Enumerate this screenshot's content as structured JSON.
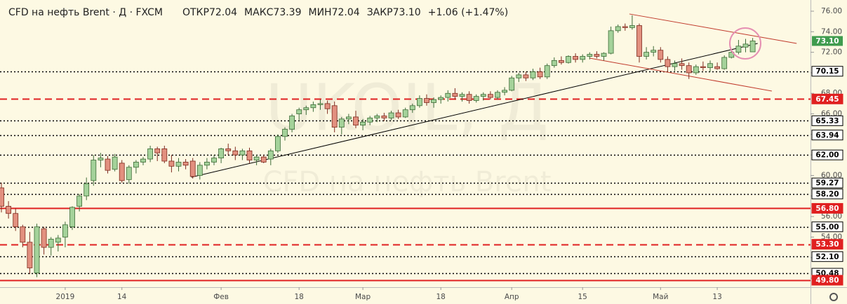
{
  "chart_data": {
    "type": "candlestick",
    "title": "CFD на нефть Brent · Д · FXCM",
    "ohlc_header": [
      {
        "label": "ОТКР",
        "value": "72.04"
      },
      {
        "label": "МАКС",
        "value": "73.39"
      },
      {
        "label": "МИН",
        "value": "72.04"
      },
      {
        "label": "ЗАКР",
        "value": "73.10"
      }
    ],
    "change": "+1.06 (+1.47%)",
    "watermark": "UKOIL, Д",
    "watermark_subtitle": "CFD на нефть Brent",
    "categories": [
      null,
      null,
      null,
      null,
      null,
      null,
      null,
      null,
      null,
      "2019",
      null,
      null,
      null,
      null,
      null,
      null,
      null,
      "14",
      null,
      null,
      null,
      null,
      null,
      null,
      null,
      null,
      null,
      null,
      null,
      null,
      null,
      "Фев",
      null,
      null,
      null,
      null,
      null,
      null,
      null,
      null,
      null,
      null,
      "18",
      null,
      null,
      null,
      null,
      null,
      null,
      null,
      null,
      "Мар",
      null,
      null,
      null,
      null,
      null,
      null,
      null,
      null,
      null,
      null,
      "18",
      null,
      null,
      null,
      null,
      null,
      null,
      null,
      null,
      null,
      "Апр",
      null,
      null,
      null,
      null,
      null,
      null,
      null,
      null,
      null,
      "15",
      null,
      null,
      null,
      null,
      null,
      null,
      null,
      null,
      null,
      null,
      "Май",
      null,
      null,
      null,
      null,
      null,
      null,
      null,
      "13",
      null,
      null,
      null,
      null,
      null
    ],
    "open": [
      58.8,
      57.0,
      56.3,
      55.0,
      53.5,
      50.5,
      54.8,
      53.0,
      53.5,
      54.0,
      55.0,
      57.0,
      58.0,
      59.5,
      61.5,
      61.6,
      60.6,
      61.2,
      59.6,
      60.8,
      61.3,
      61.6,
      62.6,
      62.6,
      61.4,
      60.9,
      61.3,
      61.4,
      60.0,
      61.0,
      61.3,
      61.7,
      62.6,
      62.4,
      62.0,
      62.4,
      61.5,
      61.8,
      61.6,
      62.4,
      63.8,
      64.5,
      66.0,
      66.4,
      66.6,
      66.9,
      67.0,
      66.8,
      64.7,
      65.5,
      65.7,
      64.9,
      65.2,
      65.6,
      65.8,
      65.6,
      66.1,
      65.7,
      66.4,
      66.8,
      67.5,
      67.1,
      67.4,
      67.6,
      68.0,
      67.7,
      67.9,
      67.3,
      67.7,
      67.9,
      67.6,
      68.1,
      68.3,
      69.5,
      69.8,
      69.5,
      70.1,
      69.6,
      70.7,
      71.2,
      71.0,
      71.6,
      71.3,
      71.6,
      71.8,
      71.6,
      71.9,
      74.1,
      74.5,
      74.4,
      74.6,
      71.6,
      72.0,
      72.2,
      71.3,
      70.6,
      70.9,
      70.7,
      70.0,
      70.6,
      70.5,
      70.6,
      70.4,
      71.5,
      72.0,
      72.5,
      72.04
    ],
    "high": [
      59.3,
      57.5,
      56.8,
      55.2,
      54.5,
      55.3,
      55.0,
      54.0,
      54.2,
      55.5,
      57.0,
      58.2,
      59.8,
      62.0,
      62.2,
      61.9,
      62.1,
      61.5,
      61.0,
      61.5,
      61.8,
      62.9,
      62.8,
      62.9,
      62.0,
      61.7,
      61.6,
      61.7,
      61.3,
      61.7,
      62.0,
      62.7,
      63.1,
      62.8,
      62.6,
      62.7,
      62.0,
      62.0,
      62.6,
      64.0,
      64.7,
      66.0,
      66.6,
      66.8,
      67.2,
      67.4,
      67.3,
      67.2,
      65.7,
      66.0,
      66.3,
      65.5,
      65.8,
      66.0,
      66.1,
      66.3,
      66.4,
      66.6,
      67.0,
      67.8,
      67.9,
      67.6,
      67.8,
      68.3,
      68.5,
      68.1,
      68.2,
      67.9,
      68.1,
      68.2,
      68.3,
      68.6,
      69.7,
      70.0,
      70.1,
      70.4,
      70.5,
      70.9,
      71.5,
      71.6,
      71.7,
      71.9,
      71.8,
      72.0,
      72.1,
      72.0,
      74.5,
      74.7,
      74.8,
      75.6,
      74.8,
      72.5,
      72.6,
      72.5,
      71.6,
      71.2,
      71.4,
      71.0,
      70.8,
      71.1,
      71.2,
      71.0,
      71.7,
      72.2,
      73.2,
      73.3,
      73.39
    ],
    "low": [
      56.4,
      55.8,
      54.6,
      53.0,
      50.4,
      50.1,
      52.3,
      52.2,
      52.6,
      53.0,
      54.7,
      56.5,
      57.6,
      59.0,
      60.8,
      60.2,
      60.4,
      59.3,
      59.2,
      60.2,
      61.0,
      61.3,
      61.4,
      61.2,
      60.3,
      60.4,
      60.6,
      59.7,
      59.6,
      60.6,
      61.0,
      61.2,
      62.0,
      61.5,
      61.5,
      61.2,
      61.0,
      61.2,
      61.0,
      62.2,
      63.4,
      64.2,
      65.4,
      65.9,
      66.2,
      66.4,
      66.0,
      64.2,
      64.0,
      65.0,
      64.6,
      64.4,
      64.9,
      65.2,
      65.3,
      65.4,
      65.5,
      65.6,
      66.1,
      66.6,
      66.8,
      66.6,
      67.0,
      67.2,
      67.4,
      67.2,
      67.0,
      67.1,
      67.3,
      67.4,
      67.4,
      67.8,
      68.2,
      69.1,
      69.2,
      69.3,
      69.4,
      69.4,
      70.5,
      70.8,
      70.9,
      71.0,
      71.0,
      71.3,
      71.4,
      71.2,
      71.8,
      73.9,
      74.1,
      74.2,
      71.0,
      71.3,
      71.6,
      71.0,
      70.1,
      70.2,
      70.3,
      69.4,
      69.8,
      70.2,
      70.1,
      70.3,
      70.3,
      71.4,
      71.8,
      72.0,
      72.04
    ],
    "close": [
      57.0,
      56.3,
      55.0,
      53.5,
      51.0,
      55.0,
      53.0,
      53.8,
      53.9,
      55.2,
      56.9,
      58.0,
      59.2,
      61.5,
      61.7,
      60.5,
      61.8,
      59.5,
      60.8,
      61.3,
      61.6,
      62.6,
      62.2,
      61.4,
      60.9,
      61.3,
      61.0,
      59.9,
      61.0,
      61.3,
      61.7,
      62.6,
      62.4,
      62.0,
      62.4,
      61.5,
      61.8,
      61.3,
      62.4,
      63.8,
      64.5,
      65.8,
      66.4,
      66.6,
      66.9,
      67.0,
      66.5,
      64.7,
      65.5,
      65.7,
      64.9,
      65.2,
      65.6,
      65.8,
      65.6,
      66.1,
      65.7,
      66.4,
      66.8,
      67.5,
      67.1,
      67.4,
      67.6,
      68.0,
      67.7,
      67.9,
      67.3,
      67.7,
      67.9,
      67.6,
      68.1,
      68.3,
      69.5,
      69.8,
      69.5,
      70.1,
      69.6,
      70.7,
      71.2,
      71.0,
      71.6,
      71.3,
      71.6,
      71.8,
      71.6,
      71.9,
      74.1,
      74.5,
      74.4,
      74.6,
      71.6,
      72.0,
      72.2,
      71.3,
      70.6,
      70.9,
      70.7,
      70.0,
      70.6,
      70.5,
      70.9,
      70.4,
      71.5,
      72.0,
      72.6,
      72.8,
      73.1
    ],
    "up_color": "#a4d29a",
    "down_color": "#e2907f",
    "ylim": [
      49.12,
      77.09
    ],
    "yticks": [
      {
        "value": 50,
        "label": "50.00"
      },
      {
        "value": 52,
        "label": "52.00"
      },
      {
        "value": 54,
        "label": "54.00"
      },
      {
        "value": 56,
        "label": "56.00"
      },
      {
        "value": 58,
        "label": "58.00"
      },
      {
        "value": 60,
        "label": "60.00"
      },
      {
        "value": 62,
        "label": "62.00"
      },
      {
        "value": 64,
        "label": "64.00"
      },
      {
        "value": 66,
        "label": "66.00"
      },
      {
        "value": 68,
        "label": "68.00"
      },
      {
        "value": 70,
        "label": "70.00"
      },
      {
        "value": 72,
        "label": "72.00"
      },
      {
        "value": 74,
        "label": "74.00"
      },
      {
        "value": 76,
        "label": "76.00"
      }
    ],
    "levels": [
      {
        "value": 70.15,
        "label": "70.15",
        "style": "dotted",
        "color": "#000000"
      },
      {
        "value": 67.45,
        "label": "67.45",
        "style": "dashed",
        "color": "#e02020"
      },
      {
        "value": 65.33,
        "label": "65.33",
        "style": "dotted",
        "color": "#000000"
      },
      {
        "value": 63.94,
        "label": "63.94",
        "style": "dotted",
        "color": "#000000"
      },
      {
        "value": 62,
        "label": "62.00",
        "style": "dotted",
        "color": "#000000"
      },
      {
        "value": 59.27,
        "label": "59.27",
        "style": "dotted",
        "color": "#000000"
      },
      {
        "value": 58.2,
        "label": "58.20",
        "style": "dotted",
        "color": "#000000"
      },
      {
        "value": 56.8,
        "label": "56.80",
        "style": "solid",
        "color": "#e02020"
      },
      {
        "value": 55,
        "label": "55.00",
        "style": "dotted",
        "color": "#000000"
      },
      {
        "value": 53.3,
        "label": "53.30",
        "style": "dashed",
        "color": "#e02020"
      },
      {
        "value": 52.1,
        "label": "52.10",
        "style": "dotted",
        "color": "#000000"
      },
      {
        "value": 50.48,
        "label": "50.48",
        "style": "dotted",
        "color": "#000000"
      },
      {
        "value": 49.8,
        "label": "49.80",
        "style": "solid",
        "color": "#e02020"
      }
    ],
    "last_price": {
      "value": 73.1,
      "label": "73.10",
      "color": "#3f9b4e"
    },
    "trendlines": [
      {
        "from": [
          26.8,
          59.83
        ],
        "to": [
          106.7,
          72.86
        ],
        "color": "#000000"
      },
      {
        "from": [
          88.6,
          75.73
        ],
        "to": [
          112.2,
          72.86
        ],
        "color": "#c0392b"
      },
      {
        "from": [
          83.0,
          71.43
        ],
        "to": [
          108.7,
          68.22
        ],
        "color": "#c0392b"
      }
    ]
  }
}
